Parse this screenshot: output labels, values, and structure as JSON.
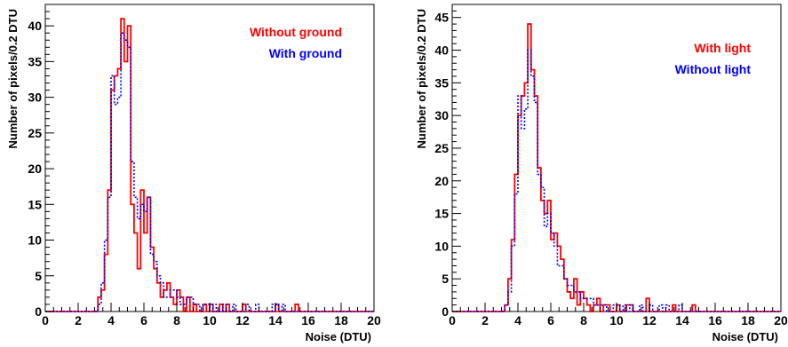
{
  "chart_data": [
    {
      "type": "histogram",
      "xlabel": "Noise (DTU)",
      "ylabel": "Number of pixels/0.2 DTU",
      "xlim": [
        0,
        20
      ],
      "ylim": [
        0,
        43
      ],
      "bin_width": 0.2,
      "x_ticks": [
        0,
        2,
        4,
        6,
        8,
        10,
        12,
        14,
        16,
        18,
        20
      ],
      "y_ticks": [
        0,
        5,
        10,
        15,
        20,
        25,
        30,
        35,
        40
      ],
      "legend_position": "top-right",
      "grid": false,
      "series": [
        {
          "name": "Without ground",
          "color": "#ff0000",
          "style": "solid",
          "x": [
            3.2,
            3.4,
            3.6,
            3.8,
            4.0,
            4.2,
            4.4,
            4.6,
            4.8,
            5.0,
            5.2,
            5.4,
            5.6,
            5.8,
            6.0,
            6.2,
            6.4,
            6.6,
            6.8,
            7.0,
            7.2,
            7.4,
            7.6,
            7.8,
            8.0,
            8.2,
            8.4,
            8.6,
            8.8,
            9.0,
            9.2,
            9.4,
            9.6,
            9.8,
            10.0,
            10.2,
            10.4,
            10.6,
            10.8,
            11.0,
            11.2,
            11.4,
            11.6,
            11.8,
            12.0,
            12.2,
            12.4,
            12.6,
            12.8,
            13.0,
            13.2,
            13.4,
            13.6,
            13.8,
            14.0,
            14.2,
            14.4,
            14.6,
            14.8,
            15.0,
            15.2,
            15.4,
            15.6,
            15.8,
            16.0
          ],
          "values": [
            2,
            3,
            8,
            17,
            31,
            33,
            34,
            41,
            35,
            40,
            15,
            11,
            6,
            17,
            11,
            16,
            9,
            6,
            4,
            2,
            3,
            4,
            2,
            1,
            3,
            2,
            0,
            2,
            0,
            1,
            0,
            0,
            1,
            0,
            1,
            0,
            0,
            1,
            0,
            1,
            0,
            0,
            0,
            0,
            1,
            0,
            0,
            0,
            0,
            0,
            0,
            0,
            0,
            0,
            1,
            0,
            0,
            0,
            0,
            0,
            1,
            0,
            0,
            0,
            0
          ]
        },
        {
          "name": "With ground",
          "color": "#0000ff",
          "style": "dotted",
          "x": [
            3.2,
            3.4,
            3.6,
            3.8,
            4.0,
            4.2,
            4.4,
            4.6,
            4.8,
            5.0,
            5.2,
            5.4,
            5.6,
            5.8,
            6.0,
            6.2,
            6.4,
            6.6,
            6.8,
            7.0,
            7.2,
            7.4,
            7.6,
            7.8,
            8.0,
            8.2,
            8.4,
            8.6,
            8.8,
            9.0,
            9.2,
            9.4,
            9.6,
            9.8,
            10.0,
            10.2,
            10.4,
            10.6,
            10.8,
            11.0,
            11.2,
            11.4,
            11.6,
            11.8,
            12.0,
            12.2,
            12.4,
            12.6,
            12.8,
            13.0,
            13.2,
            13.4,
            13.6,
            13.8,
            14.0,
            14.2,
            14.4,
            14.6,
            14.8,
            15.0,
            15.2,
            15.4,
            15.6,
            15.8,
            16.0
          ],
          "values": [
            1,
            4,
            10,
            16,
            33,
            29,
            30,
            39,
            38,
            37,
            21,
            16,
            13,
            15,
            14,
            16,
            8,
            7,
            5,
            4,
            2,
            2,
            3,
            3,
            2,
            1,
            1,
            2,
            2,
            1,
            1,
            0,
            1,
            1,
            0,
            1,
            0,
            0,
            1,
            0,
            0,
            1,
            0,
            0,
            0,
            1,
            0,
            0,
            1,
            0,
            0,
            0,
            0,
            1,
            1,
            0,
            1,
            0,
            0,
            0,
            0,
            0,
            0,
            0,
            0
          ]
        }
      ]
    },
    {
      "type": "histogram",
      "xlabel": "Noise (DTU)",
      "ylabel": "Number of pixels/0.2 DTU",
      "xlim": [
        0,
        20
      ],
      "ylim": [
        0,
        47
      ],
      "bin_width": 0.2,
      "x_ticks": [
        0,
        2,
        4,
        6,
        8,
        10,
        12,
        14,
        16,
        18,
        20
      ],
      "y_ticks": [
        0,
        5,
        10,
        15,
        20,
        25,
        30,
        35,
        40,
        45
      ],
      "legend_position": "top-right",
      "grid": false,
      "series": [
        {
          "name": "With light",
          "color": "#ff0000",
          "style": "solid",
          "x": [
            3.2,
            3.4,
            3.6,
            3.8,
            4.0,
            4.2,
            4.4,
            4.6,
            4.8,
            5.0,
            5.2,
            5.4,
            5.6,
            5.8,
            6.0,
            6.2,
            6.4,
            6.6,
            6.8,
            7.0,
            7.2,
            7.4,
            7.6,
            7.8,
            8.0,
            8.2,
            8.4,
            8.6,
            8.8,
            9.0,
            9.2,
            9.4,
            9.6,
            9.8,
            10.0,
            10.2,
            10.4,
            10.6,
            10.8,
            11.0,
            11.2,
            11.4,
            11.6,
            11.8,
            12.0,
            12.2,
            12.4,
            12.6,
            12.8,
            13.0,
            13.2,
            13.4,
            13.6,
            13.8,
            14.0,
            14.2,
            14.4,
            14.6,
            14.8,
            15.0,
            15.2,
            15.4,
            15.6,
            15.8,
            16.0
          ],
          "values": [
            1,
            5,
            11,
            21,
            30,
            33,
            35,
            44,
            37,
            33,
            22,
            17,
            15,
            17,
            11,
            12,
            10,
            8,
            5,
            3,
            2,
            5,
            1,
            3,
            2,
            1,
            0,
            1,
            2,
            0,
            1,
            1,
            0,
            0,
            1,
            0,
            0,
            1,
            1,
            0,
            0,
            0,
            0,
            2,
            0,
            0,
            0,
            0,
            0,
            0,
            0,
            1,
            0,
            0,
            0,
            0,
            0,
            1,
            0,
            0,
            0,
            0,
            0,
            0,
            0
          ]
        },
        {
          "name": "Without light",
          "color": "#0000ff",
          "style": "dotted",
          "x": [
            3.2,
            3.4,
            3.6,
            3.8,
            4.0,
            4.2,
            4.4,
            4.6,
            4.8,
            5.0,
            5.2,
            5.4,
            5.6,
            5.8,
            6.0,
            6.2,
            6.4,
            6.6,
            6.8,
            7.0,
            7.2,
            7.4,
            7.6,
            7.8,
            8.0,
            8.2,
            8.4,
            8.6,
            8.8,
            9.0,
            9.2,
            9.4,
            9.6,
            9.8,
            10.0,
            10.2,
            10.4,
            10.6,
            10.8,
            11.0,
            11.2,
            11.4,
            11.6,
            11.8,
            12.0,
            12.2,
            12.4,
            12.6,
            12.8,
            13.0,
            13.2,
            13.4,
            13.6,
            13.8,
            14.0,
            14.2,
            14.4,
            14.6,
            14.8,
            15.0,
            15.2,
            15.4,
            15.6,
            15.8,
            16.0
          ],
          "values": [
            1,
            3,
            10,
            18,
            33,
            28,
            31,
            40,
            36,
            32,
            21,
            19,
            13,
            15,
            12,
            10,
            7,
            7,
            5,
            4,
            4,
            3,
            3,
            2,
            2,
            2,
            2,
            1,
            1,
            1,
            1,
            0,
            0,
            1,
            1,
            0,
            1,
            0,
            1,
            0,
            0,
            1,
            0,
            0,
            1,
            0,
            0,
            1,
            0,
            1,
            0,
            0,
            0,
            1,
            0,
            0,
            0,
            0,
            0,
            0,
            0,
            0,
            0,
            0,
            0
          ]
        }
      ]
    }
  ]
}
